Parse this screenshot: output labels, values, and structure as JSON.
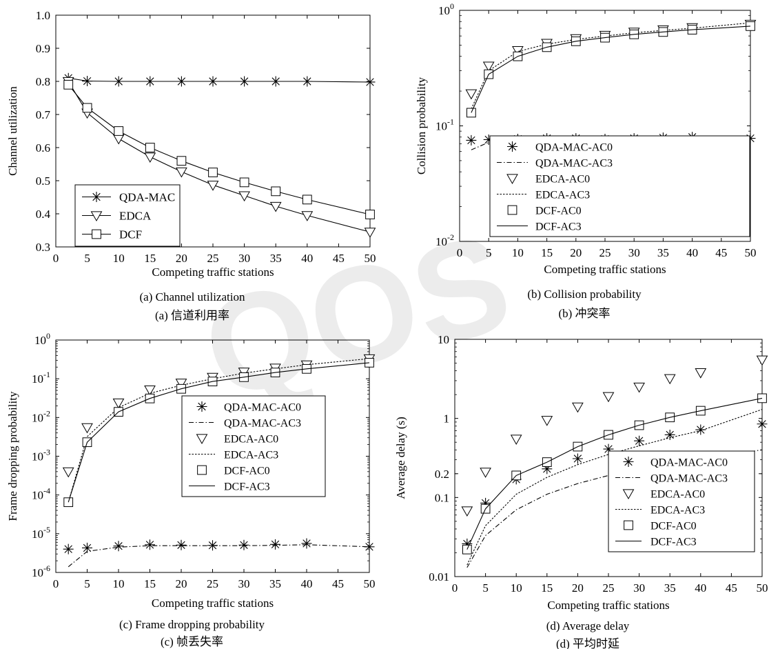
{
  "chart_data": [
    {
      "id": "a",
      "type": "line",
      "xlabel": "Competing traffic stations",
      "ylabel": "Channel utilization",
      "caption_en": "(a) Channel utilization",
      "caption_cn": "(a)  信道利用率",
      "x_ticks": [
        "0",
        "5",
        "10",
        "15",
        "20",
        "25",
        "30",
        "35",
        "40",
        "45",
        "50"
      ],
      "y_ticks": [
        "0.3",
        "0.4",
        "0.5",
        "0.6",
        "0.7",
        "0.8",
        "0.9",
        "1.0"
      ],
      "xlim": [
        0,
        50
      ],
      "ylim": [
        0.3,
        1.0
      ],
      "yscale": "linear",
      "legend_position": "bottom-left",
      "series": [
        {
          "name": "QDA-MAC",
          "marker": "star",
          "line": "solid",
          "x": [
            2,
            5,
            10,
            15,
            20,
            25,
            30,
            35,
            40,
            50
          ],
          "y": [
            0.81,
            0.801,
            0.8,
            0.8,
            0.8,
            0.8,
            0.8,
            0.8,
            0.8,
            0.798
          ]
        },
        {
          "name": "EDCA",
          "marker": "triangle-down",
          "line": "solid",
          "x": [
            2,
            5,
            10,
            15,
            20,
            25,
            30,
            35,
            40,
            50
          ],
          "y": [
            0.8,
            0.705,
            0.627,
            0.572,
            0.527,
            0.487,
            0.455,
            0.423,
            0.395,
            0.345
          ]
        },
        {
          "name": "DCF",
          "marker": "square",
          "line": "solid",
          "x": [
            2,
            5,
            10,
            15,
            20,
            25,
            30,
            35,
            40,
            50
          ],
          "y": [
            0.79,
            0.72,
            0.65,
            0.6,
            0.56,
            0.525,
            0.495,
            0.468,
            0.443,
            0.398
          ]
        }
      ]
    },
    {
      "id": "b",
      "type": "line",
      "xlabel": "Competing traffic stations",
      "ylabel": "Collision probability",
      "caption_en": "(b) Collision probability",
      "caption_cn": "(b)  冲突率",
      "x_ticks": [
        "0",
        "5",
        "10",
        "15",
        "20",
        "25",
        "30",
        "35",
        "40",
        "45",
        "50"
      ],
      "y_ticks": [
        {
          "b": "10",
          "e": "-2",
          "v": 0.01
        },
        {
          "b": "10",
          "e": "-1",
          "v": 0.1
        },
        {
          "b": "10",
          "e": "0",
          "v": 1
        }
      ],
      "xlim": [
        0,
        50
      ],
      "ylim": [
        0.01,
        1
      ],
      "yscale": "log",
      "legend_position": "bottom-right",
      "series": [
        {
          "name": "QDA-MAC-AC0",
          "marker": "star",
          "line": "none",
          "x": [
            2,
            5,
            10,
            15,
            20,
            25,
            30,
            35,
            40,
            50
          ],
          "y": [
            0.075,
            0.076,
            0.077,
            0.078,
            0.078,
            0.077,
            0.078,
            0.079,
            0.08,
            0.078
          ]
        },
        {
          "name": "QDA-MAC-AC3",
          "marker": "none",
          "line": "dashdot",
          "x": [
            2,
            5,
            10,
            15,
            20,
            25,
            30,
            35,
            40,
            50
          ],
          "y": [
            0.062,
            0.072,
            0.075,
            0.076,
            0.077,
            0.077,
            0.077,
            0.077,
            0.077,
            0.077
          ]
        },
        {
          "name": "EDCA-AC0",
          "marker": "triangle-down",
          "line": "none",
          "x": [
            2,
            5,
            10,
            15,
            20,
            25,
            30,
            35,
            40,
            50
          ],
          "y": [
            0.19,
            0.33,
            0.45,
            0.52,
            0.57,
            0.61,
            0.65,
            0.68,
            0.71,
            0.76
          ]
        },
        {
          "name": "EDCA-AC3",
          "marker": "none",
          "line": "dotted",
          "x": [
            2,
            5,
            10,
            15,
            20,
            25,
            30,
            35,
            40,
            50
          ],
          "y": [
            0.14,
            0.3,
            0.44,
            0.51,
            0.56,
            0.6,
            0.64,
            0.67,
            0.7,
            0.78
          ]
        },
        {
          "name": "DCF-AC0",
          "marker": "square",
          "line": "none",
          "x": [
            2,
            5,
            10,
            15,
            20,
            25,
            30,
            35,
            40,
            50
          ],
          "y": [
            0.13,
            0.28,
            0.4,
            0.48,
            0.54,
            0.58,
            0.62,
            0.65,
            0.68,
            0.73
          ]
        },
        {
          "name": "DCF-AC3",
          "marker": "none",
          "line": "solid",
          "x": [
            2,
            5,
            10,
            15,
            20,
            25,
            30,
            35,
            40,
            50
          ],
          "y": [
            0.13,
            0.28,
            0.4,
            0.48,
            0.54,
            0.58,
            0.62,
            0.65,
            0.68,
            0.73
          ]
        }
      ]
    },
    {
      "id": "c",
      "type": "line",
      "xlabel": "Competing traffic stations",
      "ylabel": "Frame dropping probability",
      "caption_en": "(c) Frame dropping probability",
      "caption_cn": "(c)  帧丢失率",
      "x_ticks": [
        "0",
        "5",
        "10",
        "15",
        "20",
        "25",
        "30",
        "35",
        "40",
        "45",
        "50"
      ],
      "y_ticks": [
        {
          "b": "10",
          "e": "-6",
          "v": 1e-06
        },
        {
          "b": "10",
          "e": "-5",
          "v": 1e-05
        },
        {
          "b": "10",
          "e": "-4",
          "v": 0.0001
        },
        {
          "b": "10",
          "e": "-3",
          "v": 0.001
        },
        {
          "b": "10",
          "e": "-2",
          "v": 0.01
        },
        {
          "b": "10",
          "e": "-1",
          "v": 0.1
        },
        {
          "b": "10",
          "e": "0",
          "v": 1
        }
      ],
      "xlim": [
        0,
        50
      ],
      "ylim": [
        1e-06,
        1
      ],
      "yscale": "log",
      "legend_position": "center-right",
      "series": [
        {
          "name": "QDA-MAC-AC0",
          "marker": "star",
          "line": "none",
          "x": [
            2,
            5,
            10,
            15,
            20,
            25,
            30,
            35,
            40,
            50
          ],
          "y": [
            4e-06,
            4.3e-06,
            4.8e-06,
            5.2e-06,
            5.1e-06,
            5e-06,
            5.1e-06,
            5.3e-06,
            5.6e-06,
            4.6e-06
          ]
        },
        {
          "name": "QDA-MAC-AC3",
          "marker": "none",
          "line": "dashdot",
          "x": [
            2,
            5,
            10,
            15,
            20,
            25,
            30,
            35,
            40,
            50
          ],
          "y": [
            1.4e-06,
            3.5e-06,
            4.5e-06,
            4.9e-06,
            4.9e-06,
            4.9e-06,
            4.9e-06,
            5e-06,
            5.2e-06,
            4.6e-06
          ]
        },
        {
          "name": "EDCA-AC0",
          "marker": "triangle-down",
          "line": "none",
          "x": [
            2,
            5,
            10,
            15,
            20,
            25,
            30,
            35,
            40,
            50
          ],
          "y": [
            0.0004,
            0.0055,
            0.024,
            0.052,
            0.078,
            0.11,
            0.15,
            0.19,
            0.23,
            0.33
          ]
        },
        {
          "name": "EDCA-AC3",
          "marker": "none",
          "line": "dotted",
          "x": [
            2,
            5,
            10,
            15,
            20,
            25,
            30,
            35,
            40,
            50
          ],
          "y": [
            6.5e-05,
            0.0032,
            0.018,
            0.042,
            0.068,
            0.1,
            0.14,
            0.18,
            0.23,
            0.33
          ]
        },
        {
          "name": "DCF-AC0",
          "marker": "square",
          "line": "none",
          "x": [
            2,
            5,
            10,
            15,
            20,
            25,
            30,
            35,
            40,
            50
          ],
          "y": [
            6.5e-05,
            0.0023,
            0.014,
            0.031,
            0.055,
            0.085,
            0.11,
            0.145,
            0.18,
            0.26
          ]
        },
        {
          "name": "DCF-AC3",
          "marker": "none",
          "line": "solid",
          "x": [
            2,
            5,
            10,
            15,
            20,
            25,
            30,
            35,
            40,
            50
          ],
          "y": [
            6.5e-05,
            0.0023,
            0.014,
            0.031,
            0.055,
            0.085,
            0.11,
            0.145,
            0.18,
            0.26
          ]
        }
      ]
    },
    {
      "id": "d",
      "type": "line",
      "xlabel": "Competing traffic stations",
      "ylabel": "Average delay (s)",
      "caption_en": "(d) Average delay",
      "caption_cn": "(d)  平均时延",
      "x_ticks": [
        "0",
        "5",
        "10",
        "15",
        "20",
        "25",
        "30",
        "35",
        "40",
        "45",
        "50"
      ],
      "y_ticks": [
        {
          "t": "0.01",
          "v": 0.01
        },
        {
          "t": "0.1",
          "v": 0.1
        },
        {
          "t": "0.2",
          "v": 0.2
        },
        {
          "t": "1",
          "v": 1
        },
        {
          "t": "10",
          "v": 10
        }
      ],
      "xlim": [
        0,
        50
      ],
      "ylim": [
        0.01,
        10
      ],
      "yscale": "log",
      "legend_position": "bottom-right",
      "series": [
        {
          "name": "QDA-MAC-AC0",
          "marker": "star",
          "line": "none",
          "x": [
            2,
            5,
            10,
            15,
            20,
            25,
            30,
            35,
            40,
            50
          ],
          "y": [
            0.026,
            0.085,
            0.17,
            0.23,
            0.31,
            0.41,
            0.52,
            0.62,
            0.72,
            0.85
          ]
        },
        {
          "name": "QDA-MAC-AC3",
          "marker": "none",
          "line": "dashdot",
          "x": [
            2,
            5,
            10,
            15,
            20,
            25,
            30,
            35,
            40,
            50
          ],
          "y": [
            0.013,
            0.033,
            0.07,
            0.11,
            0.15,
            0.19,
            0.23,
            0.27,
            0.31,
            0.4
          ]
        },
        {
          "name": "EDCA-AC0",
          "marker": "triangle-down",
          "line": "none",
          "x": [
            2,
            5,
            10,
            15,
            20,
            25,
            30,
            35,
            40,
            50
          ],
          "y": [
            0.068,
            0.21,
            0.55,
            0.95,
            1.4,
            1.9,
            2.5,
            3.2,
            3.8,
            5.5
          ]
        },
        {
          "name": "EDCA-AC3",
          "marker": "none",
          "line": "dotted",
          "x": [
            2,
            5,
            10,
            15,
            20,
            25,
            30,
            35,
            40,
            50
          ],
          "y": [
            0.014,
            0.044,
            0.11,
            0.18,
            0.26,
            0.35,
            0.45,
            0.57,
            0.7,
            1.3
          ]
        },
        {
          "name": "DCF-AC0",
          "marker": "square",
          "line": "none",
          "x": [
            2,
            5,
            10,
            15,
            20,
            25,
            30,
            35,
            40,
            50
          ],
          "y": [
            0.022,
            0.072,
            0.19,
            0.28,
            0.44,
            0.62,
            0.82,
            1.03,
            1.25,
            1.8
          ]
        },
        {
          "name": "DCF-AC3",
          "marker": "none",
          "line": "solid",
          "x": [
            2,
            5,
            10,
            15,
            20,
            25,
            30,
            35,
            40,
            50
          ],
          "y": [
            0.022,
            0.072,
            0.19,
            0.28,
            0.44,
            0.62,
            0.82,
            1.03,
            1.25,
            1.8
          ]
        }
      ]
    }
  ]
}
